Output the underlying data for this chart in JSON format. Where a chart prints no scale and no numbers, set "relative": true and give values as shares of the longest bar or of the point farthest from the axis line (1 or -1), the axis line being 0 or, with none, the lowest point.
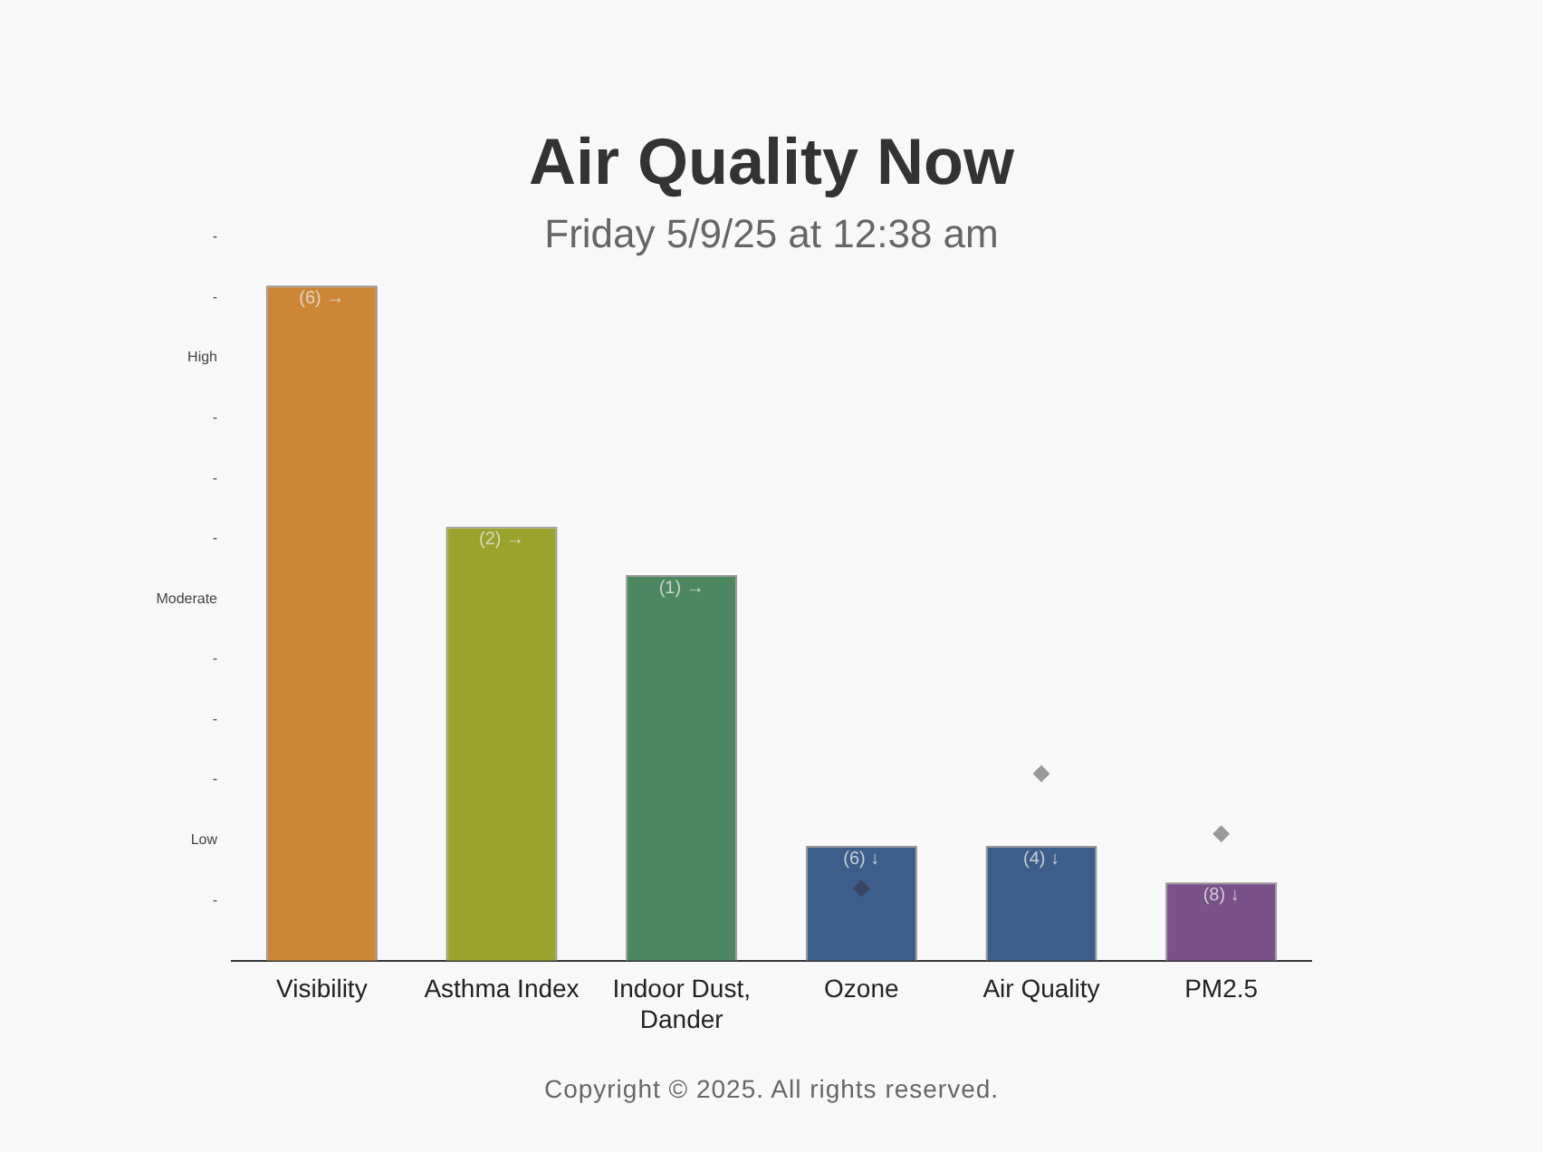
{
  "chart_data": {
    "type": "bar",
    "title": "Air Quality Now",
    "subtitle": "Friday 5/9/25 at 12:38 am",
    "relative": true,
    "categories": [
      "Visibility",
      "Asthma Index",
      "Indoor Dust, Dander",
      "Ozone",
      "Air Quality",
      "PM2.5"
    ],
    "series": [
      {
        "colors": [
          "#cc8635",
          "#9aa32c",
          "#4d8760",
          "#3d5d8a",
          "#3d5d8a",
          "#7a5089"
        ],
        "values": [
          1,
          0.643,
          0.571,
          0.17,
          0.17,
          0.116
        ]
      },
      {
        "type": "scatter",
        "x": [
          "Ozone",
          "Air Quality",
          "PM2.5"
        ],
        "colors": [
          "#3a4660",
          "#999999",
          "#999999"
        ],
        "values": [
          0.107,
          0.277,
          0.188
        ]
      }
    ],
    "grid": false,
    "legend": false,
    "marker": "diamond",
    "annotations": [
      {
        "text": "(6) →",
        "x": "Visibility",
        "y": 1
      },
      {
        "text": "(2) →",
        "x": "Asthma Index",
        "y": 0.643
      },
      {
        "text": "(1) →",
        "x": "Indoor Dust, Dander",
        "y": 0.571
      },
      {
        "text": "(6) ↓",
        "x": "Ozone",
        "y": 0.17
      },
      {
        "text": "(4) ↓",
        "x": "Air Quality",
        "y": 0.17
      },
      {
        "text": "(8) ↓",
        "x": "PM2.5",
        "y": 0.116
      },
      "-",
      "-",
      "High",
      "-",
      "-",
      "-",
      "Moderate",
      "-",
      "-",
      "-",
      "Low",
      "-",
      "Copyright © 2025. All rights reserved."
    ]
  }
}
